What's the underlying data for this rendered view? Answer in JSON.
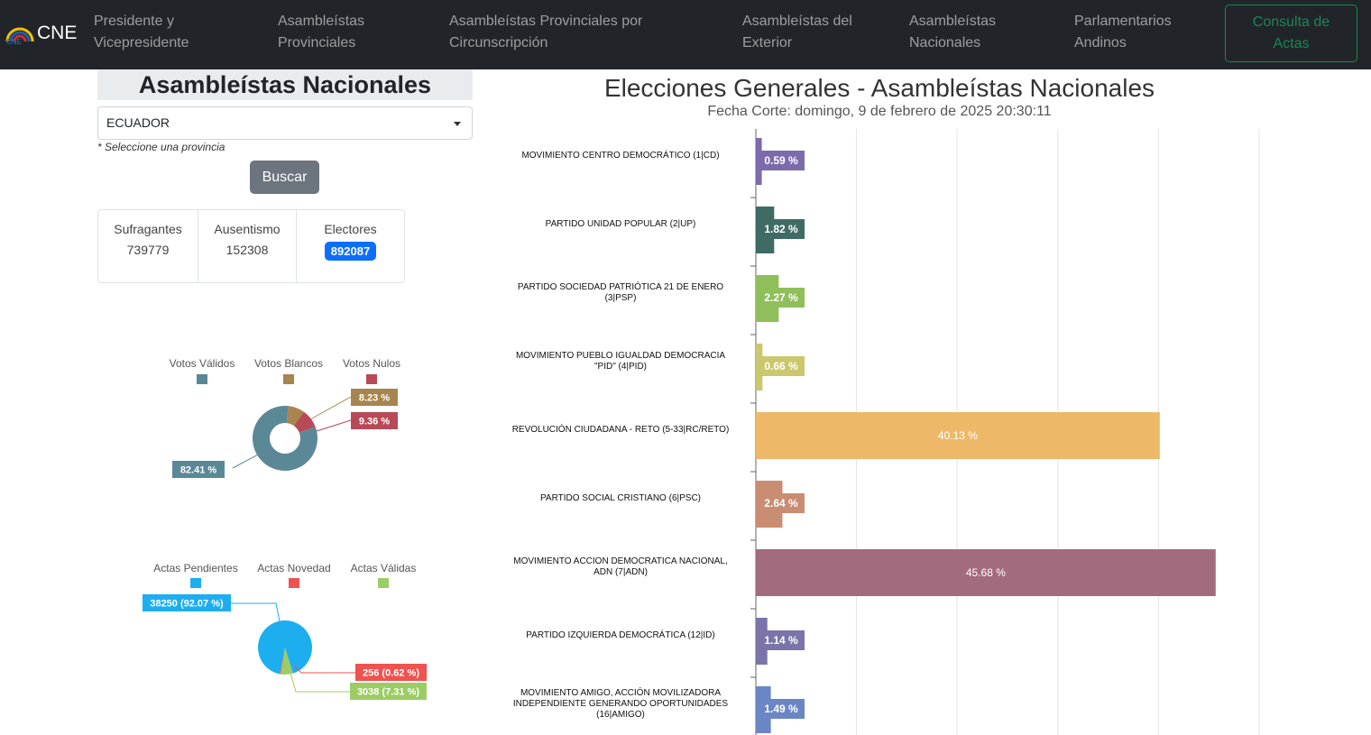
{
  "nav": {
    "brand": "CNE",
    "items": [
      "Presidente y\nVicepresidente",
      "Asambleístas\nProvinciales",
      "Asambleístas Provinciales por\nCircunscripción",
      "Asambleístas del\nExterior",
      "Asambleístas\nNacionales",
      "Parlamentarios\nAndinos"
    ],
    "actas_button": "Consulta de\nActas"
  },
  "panel": {
    "title": "Asambleístas Nacionales",
    "province_selected": "ECUADOR",
    "hint": "* Seleccione una provincia",
    "search_button": "Buscar",
    "stats": [
      {
        "label": "Sufragantes",
        "value": "739779"
      },
      {
        "label": "Ausentismo",
        "value": "152308"
      },
      {
        "label": "Electores",
        "value": "892087"
      }
    ]
  },
  "votes_chart": {
    "legend": [
      "Votos Válidos",
      "Votos Blancos",
      "Votos Nulos"
    ],
    "colors": [
      "#5b8896",
      "#a8844f",
      "#b84a57"
    ],
    "values": [
      82.41,
      8.23,
      9.36
    ],
    "labels": [
      "82.41 %",
      "8.23 %",
      "9.36 %"
    ]
  },
  "actas_chart": {
    "legend": [
      "Actas Pendientes",
      "Actas Novedad",
      "Actas Válidas"
    ],
    "colors": [
      "#1daef0",
      "#ef5350",
      "#9ccc65"
    ],
    "values": [
      92.07,
      0.62,
      7.31
    ],
    "labels": [
      "38250 (92.07 %)",
      "256 (0.62 %)",
      "3038 (7.31 %)"
    ]
  },
  "chart_data": {
    "type": "bar",
    "orientation": "horizontal",
    "title": "Elecciones Generales - Asambleístas Nacionales",
    "subtitle": "Fecha Corte: domingo, 9 de febrero de 2025 20:30:11",
    "categories": [
      "MOVIMIENTO CENTRO DEMOCRÁTICO (1|CD)",
      "PARTIDO UNIDAD POPULAR (2|UP)",
      "PARTIDO SOCIEDAD PATRIÓTICA 21 DE ENERO (3|PSP)",
      "MOVIMIENTO PUEBLO IGUALDAD DEMOCRACIA \"PID\" (4|PID)",
      "REVOLUCIÓN CIUDADANA - RETO (5-33|RC/RETO)",
      "PARTIDO SOCIAL CRISTIANO (6|PSC)",
      "MOVIMIENTO ACCION DEMOCRATICA NACIONAL, ADN (7|ADN)",
      "PARTIDO IZQUIERDA DEMOCRÁTICA (12|ID)",
      "MOVIMIENTO AMIGO, ACCIÓN MOVILIZADORA INDEPENDIENTE GENERANDO OPORTUNIDADES (16|AMIGO)"
    ],
    "values": [
      0.59,
      1.82,
      2.27,
      0.66,
      40.13,
      2.64,
      45.68,
      1.14,
      1.49
    ],
    "data_labels": [
      "0.59 %",
      "1.82 %",
      "2.27 %",
      "0.66 %",
      "40.13 %",
      "2.64 %",
      "45.68 %",
      "1.14 %",
      "1.49 %"
    ],
    "colors": [
      "#7b6bab",
      "#3f6b64",
      "#8fbf5a",
      "#cbc76e",
      "#edb968",
      "#c98d73",
      "#a36b7e",
      "#7a74a8",
      "#6a86c4"
    ],
    "xlim": [
      0,
      50
    ],
    "grid": true
  }
}
